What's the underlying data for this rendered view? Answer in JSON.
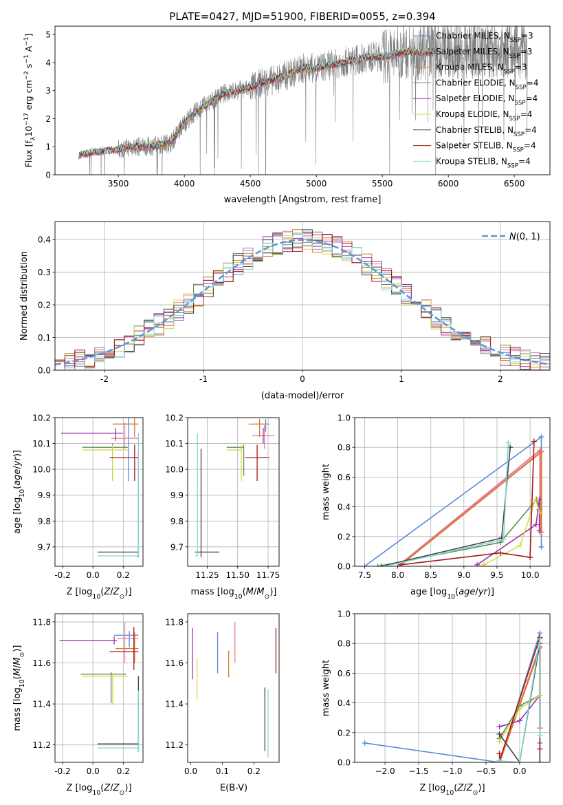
{
  "figure": {
    "title": "PLATE=0427, MJD=51900, FIBERID=0055, z=0.394"
  },
  "colors": {
    "Chabrier MILES": "#5b86d9",
    "Salpeter MILES": "#e8799f",
    "Kroupa MILES": "#d77a31",
    "Chabrier ELODIE": "#5e8a54",
    "Salpeter ELODIE": "#9b30b0",
    "Kroupa ELODIE": "#d9d94a",
    "Chabrier STELIB": "#444444",
    "Salpeter STELIB": "#a31818",
    "Kroupa STELIB": "#7fd8d8",
    "spectrum": "#808080",
    "gaussian": "#6394d6",
    "grid": "#b0b0b0",
    "extra_green": "#7fc33d"
  },
  "chart_data": [
    {
      "id": "spectrum",
      "type": "line",
      "xlabel": "wavelength [Angstrom, rest frame]",
      "ylabel": "Flux [f_λ 10^-17 erg cm^-2 s^-1 A^-1]",
      "xlim": [
        3020,
        6770
      ],
      "ylim": [
        0,
        5.3
      ],
      "xticks": [
        3500,
        4000,
        4500,
        5000,
        5500,
        6000,
        6500
      ],
      "yticks": [
        0,
        1,
        2,
        3,
        4,
        5
      ],
      "grid": false,
      "legend_placement": "top-right",
      "legend": [
        {
          "label": "Chabrier MILES, N_SSP=3",
          "base": "Chabrier MILES, N",
          "sub": "SSP",
          "tail": "=3",
          "color": "#5b86d9"
        },
        {
          "label": "Salpeter MILES, N_SSP=3",
          "base": "Salpeter MILES, N",
          "sub": "SSP",
          "tail": "=3",
          "color": "#e8799f"
        },
        {
          "label": "Kroupa MILES, N_SSP=3",
          "base": "Kroupa MILES, N",
          "sub": "SSP",
          "tail": "=3",
          "color": "#d77a31"
        },
        {
          "label": "Chabrier ELODIE, N_SSP=4",
          "base": "Chabrier ELODIE, N",
          "sub": "SSP",
          "tail": "=4",
          "color": "#5e8a54"
        },
        {
          "label": "Salpeter ELODIE, N_SSP=4",
          "base": "Salpeter ELODIE, N",
          "sub": "SSP",
          "tail": "=4",
          "color": "#9b30b0"
        },
        {
          "label": "Kroupa ELODIE, N_SSP=4",
          "base": "Kroupa ELODIE, N",
          "sub": "SSP",
          "tail": "=4",
          "color": "#d9d94a"
        },
        {
          "label": "Chabrier STELIB, N_SSP=4",
          "base": "Chabrier STELIB, N",
          "sub": "SSP",
          "tail": "=4",
          "color": "#444444"
        },
        {
          "label": "Salpeter STELIB, N_SSP=4",
          "base": "Salpeter STELIB, N",
          "sub": "SSP",
          "tail": "=4",
          "color": "#a31818"
        },
        {
          "label": "Kroupa STELIB, N_SSP=4",
          "base": "Kroupa STELIB, N",
          "sub": "SSP",
          "tail": "=4",
          "color": "#7fd8d8"
        }
      ],
      "model_x": [
        3200,
        3300,
        3400,
        3500,
        3600,
        3700,
        3800,
        3900,
        4000,
        4100,
        4200,
        4300,
        4400,
        4500,
        4600,
        4700,
        4800,
        4900,
        5000,
        5100,
        5200,
        5300,
        5400,
        5500,
        5600,
        5700,
        5800,
        5900
      ],
      "model_y": [
        0.7,
        0.8,
        0.85,
        0.9,
        1.0,
        1.0,
        1.05,
        1.15,
        1.85,
        2.3,
        2.6,
        2.9,
        3.0,
        3.1,
        3.3,
        3.4,
        3.6,
        3.8,
        3.8,
        3.9,
        4.0,
        4.1,
        4.2,
        4.2,
        4.3,
        4.4,
        4.35,
        4.4
      ],
      "data_x_range": [
        3200,
        6600
      ],
      "data_noise_level": "increases toward red"
    },
    {
      "id": "residuals",
      "type": "histogram",
      "xlabel": "(data-model)/error",
      "ylabel": "Normed distribution",
      "xlim": [
        -2.5,
        2.5
      ],
      "ylim": [
        0,
        0.455
      ],
      "xticks": [
        -2,
        -1,
        0,
        1,
        2
      ],
      "yticks": [
        0.0,
        0.1,
        0.2,
        0.3,
        0.4
      ],
      "grid": true,
      "bin_width": 0.1,
      "reference_curve": {
        "label": "N(0,1)",
        "mean": 0,
        "sigma": 1
      },
      "legend_placement": "top-right"
    },
    {
      "id": "age_vs_Z",
      "type": "errorbar",
      "xlabel": "Z [log10(Z/Z⊙)]",
      "ylabel": "age [log10(age/yr)]",
      "xlim": [
        -0.25,
        0.33
      ],
      "ylim": [
        9.625,
        10.2
      ],
      "xticks": [
        -0.2,
        0.0,
        0.2
      ],
      "yticks": [
        9.7,
        9.8,
        9.9,
        10.0,
        10.1,
        10.2
      ],
      "grid": true,
      "points": [
        {
          "series": "Chabrier MILES",
          "x": 0.235,
          "y": 10.175,
          "xerr": [
            0.1,
            0.06
          ],
          "yerr": [
            0.22,
            0.025
          ]
        },
        {
          "series": "Salpeter MILES",
          "x": 0.21,
          "y": 10.12,
          "xerr": [
            0.09,
            0.09
          ],
          "yerr": [
            0.04,
            0.06
          ]
        },
        {
          "series": "Kroupa MILES",
          "x": 0.275,
          "y": 10.175,
          "xerr": [
            0.145,
            0.025
          ],
          "yerr": [
            0.05,
            0.025
          ]
        },
        {
          "series": "Chabrier ELODIE",
          "x": 0.13,
          "y": 10.085,
          "xerr": [
            0.2,
            0.1
          ],
          "yerr": [
            0.13,
            0.015
          ]
        },
        {
          "series": "Salpeter ELODIE",
          "x": 0.15,
          "y": 10.14,
          "xerr": [
            0.36,
            0.05
          ],
          "yerr": [
            0.03,
            0.02
          ]
        },
        {
          "series": "Kroupa ELODIE",
          "x": 0.13,
          "y": 10.075,
          "xerr": [
            0.2,
            0.1
          ],
          "yerr": [
            0.12,
            0.02
          ]
        },
        {
          "series": "Chabrier STELIB",
          "x": 0.3,
          "y": 9.68,
          "xerr": [
            0.27,
            0.005
          ],
          "yerr": [
            0.02,
            0.39
          ]
        },
        {
          "series": "Salpeter STELIB",
          "x": 0.275,
          "y": 10.045,
          "xerr": [
            0.165,
            0.025
          ],
          "yerr": [
            0.09,
            0.05
          ]
        },
        {
          "series": "Kroupa STELIB",
          "x": 0.3,
          "y": 9.665,
          "xerr": [
            0.27,
            0.005
          ],
          "yerr": [
            0.0,
            0.475
          ]
        }
      ]
    },
    {
      "id": "age_vs_mass",
      "type": "errorbar",
      "xlabel": "mass [log10(M/M⊙)]",
      "ylabel": "",
      "xlim": [
        11.09,
        11.84
      ],
      "ylim": [
        9.625,
        10.2
      ],
      "xticks": [
        11.25,
        11.5,
        11.75
      ],
      "yticks": [
        9.7,
        9.8,
        9.9,
        10.0,
        10.1,
        10.2
      ],
      "grid": true,
      "points": [
        {
          "series": "Chabrier MILES",
          "x": 11.73,
          "y": 10.175,
          "xerr": [
            0.09,
            0.03
          ],
          "yerr": [
            0.03,
            0.02
          ]
        },
        {
          "series": "Salpeter MILES",
          "x": 11.72,
          "y": 10.13,
          "xerr": [
            0.1,
            0.08
          ],
          "yerr": [
            0.05,
            0.04
          ]
        },
        {
          "series": "Kroupa MILES",
          "x": 11.68,
          "y": 10.175,
          "xerr": [
            0.09,
            0.07
          ],
          "yerr": [
            0.05,
            0.02
          ]
        },
        {
          "series": "Chabrier ELODIE",
          "x": 11.55,
          "y": 10.085,
          "xerr": [
            0.14,
            0.0
          ],
          "yerr": [
            0.11,
            0.01
          ]
        },
        {
          "series": "Salpeter ELODIE",
          "x": 11.71,
          "y": 10.14,
          "xerr": [
            0.0,
            0.0
          ],
          "yerr": [
            0.04,
            0.02
          ]
        },
        {
          "series": "Kroupa ELODIE",
          "x": 11.53,
          "y": 10.075,
          "xerr": [
            0.12,
            0.0
          ],
          "yerr": [
            0.12,
            0.02
          ]
        },
        {
          "series": "Chabrier STELIB",
          "x": 11.2,
          "y": 9.68,
          "xerr": [
            0.05,
            0.15
          ],
          "yerr": [
            0.02,
            0.4
          ]
        },
        {
          "series": "Salpeter STELIB",
          "x": 11.66,
          "y": 10.045,
          "xerr": [
            0.1,
            0.1
          ],
          "yerr": [
            0.09,
            0.05
          ]
        },
        {
          "series": "Kroupa STELIB",
          "x": 11.17,
          "y": 9.665,
          "xerr": [
            0.02,
            0.0
          ],
          "yerr": [
            0.0,
            0.475
          ]
        }
      ]
    },
    {
      "id": "mass_weight_vs_age",
      "type": "line",
      "xlabel": "age [log10(age/yr)]",
      "ylabel": "mass weight",
      "xlim": [
        7.35,
        10.3
      ],
      "ylim": [
        0.0,
        1.0
      ],
      "xticks": [
        7.5,
        8.0,
        8.5,
        9.0,
        9.5,
        10.0
      ],
      "yticks": [
        0.0,
        0.2,
        0.4,
        0.6,
        0.8,
        1.0
      ],
      "grid": true,
      "series": [
        {
          "name": "Chabrier MILES",
          "x": [
            7.5,
            10.17,
            10.17
          ],
          "y": [
            0.0,
            0.87,
            0.13
          ]
        },
        {
          "name": "Salpeter MILES",
          "x": [
            8.0,
            10.15,
            10.15
          ],
          "y": [
            0.0,
            0.78,
            0.23
          ]
        },
        {
          "name": "Kroupa MILES",
          "x": [
            8.02,
            10.17,
            10.17
          ],
          "y": [
            0.0,
            0.77,
            0.23
          ]
        },
        {
          "name": "Chabrier ELODIE",
          "x": [
            7.7,
            9.55,
            10.1,
            10.14
          ],
          "y": [
            0.0,
            0.16,
            0.45,
            0.38
          ]
        },
        {
          "name": "Salpeter ELODIE",
          "x": [
            9.2,
            10.09,
            10.14,
            10.14
          ],
          "y": [
            0.01,
            0.28,
            0.45,
            0.24
          ]
        },
        {
          "name": "Kroupa ELODIE",
          "x": [
            9.3,
            9.85,
            10.08,
            10.15
          ],
          "y": [
            0.01,
            0.14,
            0.45,
            0.36
          ]
        },
        {
          "name": "Chabrier STELIB",
          "x": [
            7.75,
            9.57,
            9.7
          ],
          "y": [
            0.0,
            0.19,
            0.8
          ]
        },
        {
          "name": "Salpeter STELIB",
          "x": [
            8.05,
            9.55,
            10.0,
            10.06
          ],
          "y": [
            0.01,
            0.09,
            0.06,
            0.84
          ]
        },
        {
          "name": "Kroupa STELIB",
          "x": [
            7.8,
            9.6,
            9.67
          ],
          "y": [
            0.0,
            0.18,
            0.83
          ]
        }
      ]
    },
    {
      "id": "mass_vs_Z",
      "type": "errorbar",
      "xlabel": "Z [log10(Z/Z⊙)]",
      "ylabel": "mass [log10(M/M⊙)]",
      "xlim": [
        -0.25,
        0.33
      ],
      "ylim": [
        11.115,
        11.84
      ],
      "xticks": [
        -0.2,
        0.0,
        0.2
      ],
      "yticks": [
        11.2,
        11.4,
        11.6,
        11.8
      ],
      "grid": true,
      "points": [
        {
          "series": "Chabrier MILES",
          "x": 0.24,
          "y": 11.735,
          "xerr": [
            0.1,
            0.06
          ],
          "yerr": [
            0.06,
            0.02
          ]
        },
        {
          "series": "Salpeter MILES",
          "x": 0.21,
          "y": 11.72,
          "xerr": [
            0.05,
            0.09
          ],
          "yerr": [
            0.12,
            0.08
          ]
        },
        {
          "series": "Kroupa MILES",
          "x": 0.275,
          "y": 11.67,
          "xerr": [
            0.125,
            0.025
          ],
          "yerr": [
            0.07,
            0.08
          ]
        },
        {
          "series": "Chabrier ELODIE",
          "x": 0.12,
          "y": 11.545,
          "xerr": [
            0.2,
            0.1
          ],
          "yerr": [
            0.14,
            0.01
          ]
        },
        {
          "series": "Salpeter ELODIE",
          "x": 0.14,
          "y": 11.71,
          "xerr": [
            0.36,
            0.02
          ],
          "yerr": [
            0.02,
            0.02
          ]
        },
        {
          "series": "Kroupa ELODIE",
          "x": 0.13,
          "y": 11.535,
          "xerr": [
            0.2,
            0.1
          ],
          "yerr": [
            0.14,
            0.01
          ]
        },
        {
          "series": "Chabrier STELIB",
          "x": 0.3,
          "y": 11.205,
          "xerr": [
            0.27,
            0.005
          ],
          "yerr": [
            0.04,
            0.33
          ]
        },
        {
          "series": "Salpeter STELIB",
          "x": 0.27,
          "y": 11.655,
          "xerr": [
            0.16,
            0.03
          ],
          "yerr": [
            0.09,
            0.12
          ]
        },
        {
          "series": "Kroupa STELIB",
          "x": 0.3,
          "y": 11.185,
          "xerr": [
            0.27,
            0.005
          ],
          "yerr": [
            0.02,
            0.28
          ]
        }
      ]
    },
    {
      "id": "mass_vs_ebv",
      "type": "errorbar",
      "xlabel": "E(B-V)",
      "ylabel": "",
      "xlim": [
        -0.01,
        0.28
      ],
      "ylim": [
        11.115,
        11.84
      ],
      "xticks": [
        0.0,
        0.1,
        0.2
      ],
      "yticks": [
        11.2,
        11.4,
        11.6,
        11.8
      ],
      "grid": false,
      "points": [
        {
          "series": "Salpeter ELODIE",
          "x": 0.005,
          "y": 11.77,
          "yerr": [
            0.25,
            0.0
          ]
        },
        {
          "series": "Kroupa ELODIE",
          "x": 0.02,
          "y": 11.62,
          "yerr": [
            0.2,
            0.0
          ]
        },
        {
          "series": "Chabrier MILES",
          "x": 0.085,
          "y": 11.75,
          "yerr": [
            0.2,
            0.0
          ]
        },
        {
          "series": "Kroupa MILES",
          "x": 0.12,
          "y": 11.66,
          "yerr": [
            0.13,
            0.0
          ]
        },
        {
          "series": "Salpeter MILES",
          "x": 0.14,
          "y": 11.8,
          "yerr": [
            0.2,
            0.0
          ]
        },
        {
          "series": "Chabrier STELIB",
          "x": 0.235,
          "y": 11.48,
          "yerr": [
            0.31,
            0.0
          ]
        },
        {
          "series": "Kroupa STELIB",
          "x": 0.245,
          "y": 11.47,
          "yerr": [
            0.33,
            0.0
          ]
        },
        {
          "series": "Salpeter STELIB",
          "x": 0.27,
          "y": 11.77,
          "yerr": [
            0.22,
            0.0
          ]
        }
      ]
    },
    {
      "id": "mass_weight_vs_Z",
      "type": "line",
      "xlabel": "Z [log10(Z/Z⊙)]",
      "ylabel": "mass weight",
      "xlim": [
        -2.45,
        0.45
      ],
      "ylim": [
        0.0,
        1.0
      ],
      "xticks": [
        -2.0,
        -1.5,
        -1.0,
        -0.5,
        0.0
      ],
      "yticks": [
        0.0,
        0.2,
        0.4,
        0.6,
        0.8,
        1.0
      ],
      "grid": true,
      "series": [
        {
          "name": "Chabrier MILES",
          "x": [
            -2.3,
            -0.3,
            0.3,
            0.3
          ],
          "y": [
            0.13,
            0.0,
            0.87,
            0.13
          ]
        },
        {
          "name": "Salpeter MILES",
          "x": [
            -0.3,
            0.3,
            0.3
          ],
          "y": [
            0.0,
            0.78,
            0.23
          ]
        },
        {
          "name": "Kroupa MILES",
          "x": [
            -0.3,
            0.3,
            0.3
          ],
          "y": [
            0.0,
            0.77,
            0.23
          ]
        },
        {
          "name": "Chabrier ELODIE",
          "x": [
            -0.3,
            0.0,
            0.3,
            0.3
          ],
          "y": [
            0.16,
            0.38,
            0.45,
            0.0
          ]
        },
        {
          "name": "Salpeter ELODIE",
          "x": [
            -0.3,
            0.0,
            0.3
          ],
          "y": [
            0.24,
            0.28,
            0.45
          ]
        },
        {
          "name": "Kroupa ELODIE",
          "x": [
            -0.3,
            0.0,
            0.3
          ],
          "y": [
            0.14,
            0.36,
            0.45
          ]
        },
        {
          "name": "Chabrier STELIB",
          "x": [
            -0.3,
            0.0,
            0.3,
            0.3
          ],
          "y": [
            0.19,
            0.0,
            0.8,
            0.0
          ]
        },
        {
          "name": "Salpeter STELIB",
          "x": [
            -0.3,
            -0.3,
            0.3,
            0.3
          ],
          "y": [
            0.06,
            0.01,
            0.84,
            0.09
          ]
        },
        {
          "name": "Kroupa STELIB",
          "x": [
            -0.3,
            0.0,
            0.3,
            0.3
          ],
          "y": [
            0.01,
            0.0,
            0.83,
            0.18
          ]
        }
      ]
    }
  ]
}
